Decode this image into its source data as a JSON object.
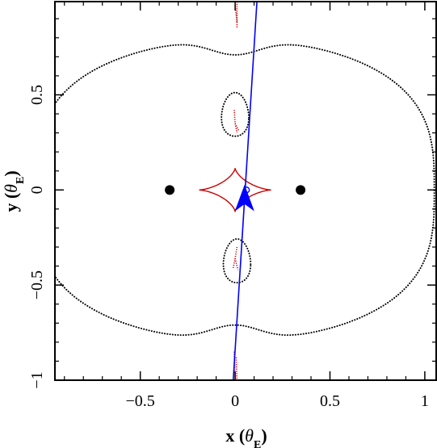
{
  "chart_data": {
    "type": "scatter",
    "title": "",
    "xlabel": "x (θE)",
    "ylabel": "y (θE)",
    "xlabel_parts": {
      "main": "x (",
      "theta": "θ",
      "sub": "E",
      "close": ")"
    },
    "ylabel_parts": {
      "main": "y (",
      "theta": "θ",
      "sub": "E",
      "close": ")"
    },
    "xlim": [
      -0.95,
      1.06
    ],
    "ylim": [
      -1.0,
      0.99
    ],
    "x_ticks": [
      {
        "value": -0.5,
        "label": "−0.5"
      },
      {
        "value": 0,
        "label": "0"
      },
      {
        "value": 0.5,
        "label": "0.5"
      },
      {
        "value": 1,
        "label": "1"
      }
    ],
    "y_ticks": [
      {
        "value": -1,
        "label": "−1"
      },
      {
        "value": -0.5,
        "label": "−0.5"
      },
      {
        "value": 0,
        "label": "0"
      },
      {
        "value": 0.5,
        "label": "0.5"
      }
    ],
    "grid": false,
    "lenses": [
      {
        "x": -0.345,
        "y": 0.0
      },
      {
        "x": 0.345,
        "y": 0.0
      }
    ],
    "source_trajectory": {
      "x1": -0.01,
      "y1": -1.0,
      "x2": 0.115,
      "y2": 0.99,
      "color": "#0000ff"
    },
    "source_position": {
      "x": 0.06,
      "y": 0.0
    },
    "direction_arrow": {
      "x": 0.05,
      "y": -0.08,
      "direction": "up"
    },
    "central_caustic": {
      "x_half": 0.19,
      "y_half": 0.115,
      "color": "#cc0000"
    },
    "colors": {
      "critical_curves": "#000000",
      "caustics": "#cc0000",
      "trajectory": "#0000ff",
      "lens": "#000000"
    }
  }
}
